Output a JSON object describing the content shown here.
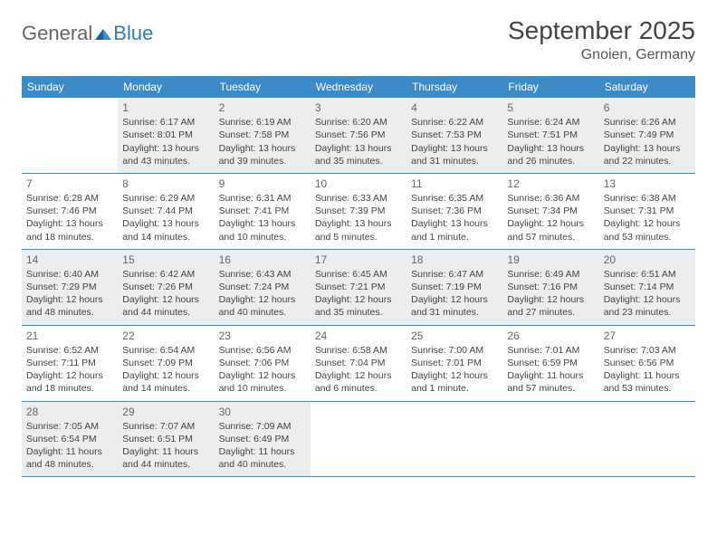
{
  "logo": {
    "part1": "General",
    "part2": "Blue"
  },
  "title": "September 2025",
  "location": "Gnoien, Germany",
  "colors": {
    "header_bg": "#3b8bc9",
    "header_text": "#ffffff",
    "shade_bg": "#ecedee",
    "border": "#3b8bc9",
    "text": "#444444",
    "daynum": "#666666"
  },
  "days_of_week": [
    "Sunday",
    "Monday",
    "Tuesday",
    "Wednesday",
    "Thursday",
    "Friday",
    "Saturday"
  ],
  "weeks": [
    [
      {
        "num": "",
        "sunrise": "",
        "sunset": "",
        "daylight1": "",
        "daylight2": "",
        "shade": false,
        "empty": true
      },
      {
        "num": "1",
        "sunrise": "Sunrise: 6:17 AM",
        "sunset": "Sunset: 8:01 PM",
        "daylight1": "Daylight: 13 hours",
        "daylight2": "and 43 minutes.",
        "shade": true
      },
      {
        "num": "2",
        "sunrise": "Sunrise: 6:19 AM",
        "sunset": "Sunset: 7:58 PM",
        "daylight1": "Daylight: 13 hours",
        "daylight2": "and 39 minutes.",
        "shade": true
      },
      {
        "num": "3",
        "sunrise": "Sunrise: 6:20 AM",
        "sunset": "Sunset: 7:56 PM",
        "daylight1": "Daylight: 13 hours",
        "daylight2": "and 35 minutes.",
        "shade": true
      },
      {
        "num": "4",
        "sunrise": "Sunrise: 6:22 AM",
        "sunset": "Sunset: 7:53 PM",
        "daylight1": "Daylight: 13 hours",
        "daylight2": "and 31 minutes.",
        "shade": true
      },
      {
        "num": "5",
        "sunrise": "Sunrise: 6:24 AM",
        "sunset": "Sunset: 7:51 PM",
        "daylight1": "Daylight: 13 hours",
        "daylight2": "and 26 minutes.",
        "shade": true
      },
      {
        "num": "6",
        "sunrise": "Sunrise: 6:26 AM",
        "sunset": "Sunset: 7:49 PM",
        "daylight1": "Daylight: 13 hours",
        "daylight2": "and 22 minutes.",
        "shade": true
      }
    ],
    [
      {
        "num": "7",
        "sunrise": "Sunrise: 6:28 AM",
        "sunset": "Sunset: 7:46 PM",
        "daylight1": "Daylight: 13 hours",
        "daylight2": "and 18 minutes.",
        "shade": false
      },
      {
        "num": "8",
        "sunrise": "Sunrise: 6:29 AM",
        "sunset": "Sunset: 7:44 PM",
        "daylight1": "Daylight: 13 hours",
        "daylight2": "and 14 minutes.",
        "shade": false
      },
      {
        "num": "9",
        "sunrise": "Sunrise: 6:31 AM",
        "sunset": "Sunset: 7:41 PM",
        "daylight1": "Daylight: 13 hours",
        "daylight2": "and 10 minutes.",
        "shade": false
      },
      {
        "num": "10",
        "sunrise": "Sunrise: 6:33 AM",
        "sunset": "Sunset: 7:39 PM",
        "daylight1": "Daylight: 13 hours",
        "daylight2": "and 5 minutes.",
        "shade": false
      },
      {
        "num": "11",
        "sunrise": "Sunrise: 6:35 AM",
        "sunset": "Sunset: 7:36 PM",
        "daylight1": "Daylight: 13 hours",
        "daylight2": "and 1 minute.",
        "shade": false
      },
      {
        "num": "12",
        "sunrise": "Sunrise: 6:36 AM",
        "sunset": "Sunset: 7:34 PM",
        "daylight1": "Daylight: 12 hours",
        "daylight2": "and 57 minutes.",
        "shade": false
      },
      {
        "num": "13",
        "sunrise": "Sunrise: 6:38 AM",
        "sunset": "Sunset: 7:31 PM",
        "daylight1": "Daylight: 12 hours",
        "daylight2": "and 53 minutes.",
        "shade": false
      }
    ],
    [
      {
        "num": "14",
        "sunrise": "Sunrise: 6:40 AM",
        "sunset": "Sunset: 7:29 PM",
        "daylight1": "Daylight: 12 hours",
        "daylight2": "and 48 minutes.",
        "shade": true
      },
      {
        "num": "15",
        "sunrise": "Sunrise: 6:42 AM",
        "sunset": "Sunset: 7:26 PM",
        "daylight1": "Daylight: 12 hours",
        "daylight2": "and 44 minutes.",
        "shade": true
      },
      {
        "num": "16",
        "sunrise": "Sunrise: 6:43 AM",
        "sunset": "Sunset: 7:24 PM",
        "daylight1": "Daylight: 12 hours",
        "daylight2": "and 40 minutes.",
        "shade": true
      },
      {
        "num": "17",
        "sunrise": "Sunrise: 6:45 AM",
        "sunset": "Sunset: 7:21 PM",
        "daylight1": "Daylight: 12 hours",
        "daylight2": "and 35 minutes.",
        "shade": true
      },
      {
        "num": "18",
        "sunrise": "Sunrise: 6:47 AM",
        "sunset": "Sunset: 7:19 PM",
        "daylight1": "Daylight: 12 hours",
        "daylight2": "and 31 minutes.",
        "shade": true
      },
      {
        "num": "19",
        "sunrise": "Sunrise: 6:49 AM",
        "sunset": "Sunset: 7:16 PM",
        "daylight1": "Daylight: 12 hours",
        "daylight2": "and 27 minutes.",
        "shade": true
      },
      {
        "num": "20",
        "sunrise": "Sunrise: 6:51 AM",
        "sunset": "Sunset: 7:14 PM",
        "daylight1": "Daylight: 12 hours",
        "daylight2": "and 23 minutes.",
        "shade": true
      }
    ],
    [
      {
        "num": "21",
        "sunrise": "Sunrise: 6:52 AM",
        "sunset": "Sunset: 7:11 PM",
        "daylight1": "Daylight: 12 hours",
        "daylight2": "and 18 minutes.",
        "shade": false
      },
      {
        "num": "22",
        "sunrise": "Sunrise: 6:54 AM",
        "sunset": "Sunset: 7:09 PM",
        "daylight1": "Daylight: 12 hours",
        "daylight2": "and 14 minutes.",
        "shade": false
      },
      {
        "num": "23",
        "sunrise": "Sunrise: 6:56 AM",
        "sunset": "Sunset: 7:06 PM",
        "daylight1": "Daylight: 12 hours",
        "daylight2": "and 10 minutes.",
        "shade": false
      },
      {
        "num": "24",
        "sunrise": "Sunrise: 6:58 AM",
        "sunset": "Sunset: 7:04 PM",
        "daylight1": "Daylight: 12 hours",
        "daylight2": "and 6 minutes.",
        "shade": false
      },
      {
        "num": "25",
        "sunrise": "Sunrise: 7:00 AM",
        "sunset": "Sunset: 7:01 PM",
        "daylight1": "Daylight: 12 hours",
        "daylight2": "and 1 minute.",
        "shade": false
      },
      {
        "num": "26",
        "sunrise": "Sunrise: 7:01 AM",
        "sunset": "Sunset: 6:59 PM",
        "daylight1": "Daylight: 11 hours",
        "daylight2": "and 57 minutes.",
        "shade": false
      },
      {
        "num": "27",
        "sunrise": "Sunrise: 7:03 AM",
        "sunset": "Sunset: 6:56 PM",
        "daylight1": "Daylight: 11 hours",
        "daylight2": "and 53 minutes.",
        "shade": false
      }
    ],
    [
      {
        "num": "28",
        "sunrise": "Sunrise: 7:05 AM",
        "sunset": "Sunset: 6:54 PM",
        "daylight1": "Daylight: 11 hours",
        "daylight2": "and 48 minutes.",
        "shade": true
      },
      {
        "num": "29",
        "sunrise": "Sunrise: 7:07 AM",
        "sunset": "Sunset: 6:51 PM",
        "daylight1": "Daylight: 11 hours",
        "daylight2": "and 44 minutes.",
        "shade": true
      },
      {
        "num": "30",
        "sunrise": "Sunrise: 7:09 AM",
        "sunset": "Sunset: 6:49 PM",
        "daylight1": "Daylight: 11 hours",
        "daylight2": "and 40 minutes.",
        "shade": true
      },
      {
        "num": "",
        "sunrise": "",
        "sunset": "",
        "daylight1": "",
        "daylight2": "",
        "shade": false,
        "empty": true
      },
      {
        "num": "",
        "sunrise": "",
        "sunset": "",
        "daylight1": "",
        "daylight2": "",
        "shade": false,
        "empty": true
      },
      {
        "num": "",
        "sunrise": "",
        "sunset": "",
        "daylight1": "",
        "daylight2": "",
        "shade": false,
        "empty": true
      },
      {
        "num": "",
        "sunrise": "",
        "sunset": "",
        "daylight1": "",
        "daylight2": "",
        "shade": false,
        "empty": true
      }
    ]
  ]
}
